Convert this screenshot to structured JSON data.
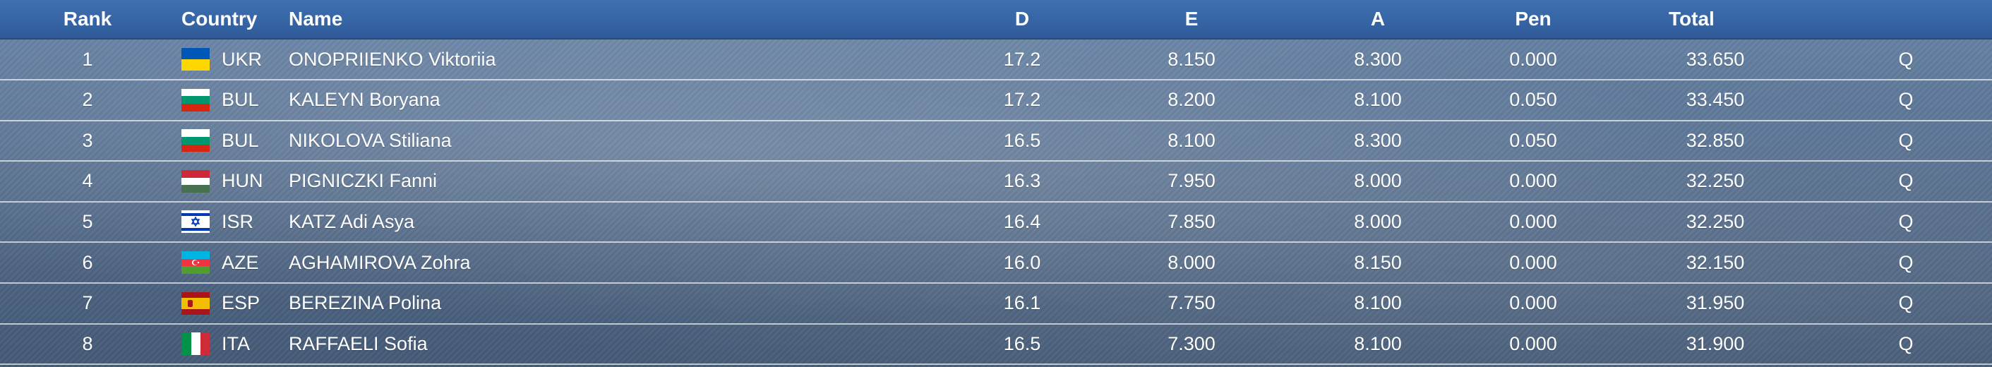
{
  "header": {
    "rank": "Rank",
    "country": "Country",
    "name": "Name",
    "d": "D",
    "e": "E",
    "a": "A",
    "pen": "Pen",
    "total": "Total"
  },
  "rows": [
    {
      "rank": "1",
      "country": "UKR",
      "flag": "ukraine-flag-icon",
      "name": "ONOPRIIENKO Viktoriia",
      "d": "17.2",
      "e": "8.150",
      "a": "8.300",
      "pen": "0.000",
      "total": "33.650",
      "q": "Q"
    },
    {
      "rank": "2",
      "country": "BUL",
      "flag": "bulgaria-flag-icon",
      "name": "KALEYN Boryana",
      "d": "17.2",
      "e": "8.200",
      "a": "8.100",
      "pen": "0.050",
      "total": "33.450",
      "q": "Q"
    },
    {
      "rank": "3",
      "country": "BUL",
      "flag": "bulgaria-flag-icon",
      "name": "NIKOLOVA Stiliana",
      "d": "16.5",
      "e": "8.100",
      "a": "8.300",
      "pen": "0.050",
      "total": "32.850",
      "q": "Q"
    },
    {
      "rank": "4",
      "country": "HUN",
      "flag": "hungary-flag-icon",
      "name": "PIGNICZKI Fanni",
      "d": "16.3",
      "e": "7.950",
      "a": "8.000",
      "pen": "0.000",
      "total": "32.250",
      "q": "Q"
    },
    {
      "rank": "5",
      "country": "ISR",
      "flag": "israel-flag-icon",
      "name": "KATZ Adi Asya",
      "d": "16.4",
      "e": "7.850",
      "a": "8.000",
      "pen": "0.000",
      "total": "32.250",
      "q": "Q"
    },
    {
      "rank": "6",
      "country": "AZE",
      "flag": "azerbaijan-flag-icon",
      "name": "AGHAMIROVA Zohra",
      "d": "16.0",
      "e": "8.000",
      "a": "8.150",
      "pen": "0.000",
      "total": "32.150",
      "q": "Q"
    },
    {
      "rank": "7",
      "country": "ESP",
      "flag": "spain-flag-icon",
      "name": "BEREZINA Polina",
      "d": "16.1",
      "e": "7.750",
      "a": "8.100",
      "pen": "0.000",
      "total": "31.950",
      "q": "Q"
    },
    {
      "rank": "8",
      "country": "ITA",
      "flag": "italy-flag-icon",
      "name": "RAFFAELI Sofia",
      "d": "16.5",
      "e": "7.300",
      "a": "8.100",
      "pen": "0.000",
      "total": "31.900",
      "q": "Q"
    }
  ],
  "colors": {
    "header_bg": "#3766a6",
    "text": "#ffffff"
  }
}
